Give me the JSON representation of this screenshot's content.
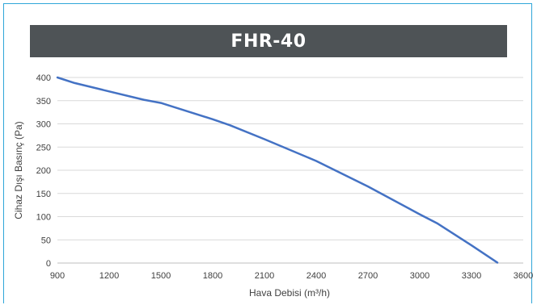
{
  "title": "FHR-40",
  "colors": {
    "frame": "#2fa6d9",
    "title_bg": "#4e5356",
    "line": "#4472c4",
    "grid": "#d9d9d9"
  },
  "chart_data": {
    "type": "line",
    "title": "FHR-40",
    "xlabel": "Hava Debisi (m³/h)",
    "ylabel": "Cihaz Dışı Basınç (Pa)",
    "xlim": [
      900,
      3600
    ],
    "ylim": [
      0,
      400
    ],
    "x_ticks": [
      900,
      1200,
      1500,
      1800,
      2100,
      2400,
      2700,
      3000,
      3300,
      3600
    ],
    "y_ticks": [
      0,
      50,
      100,
      150,
      200,
      250,
      300,
      350,
      400
    ],
    "grid": {
      "horizontal": true,
      "vertical": false
    },
    "series": [
      {
        "x": [
          900,
          1000,
          1200,
          1400,
          1500,
          1800,
          1900,
          2100,
          2400,
          2700,
          3000,
          3100,
          3300,
          3450
        ],
        "values": [
          400,
          388,
          370,
          352,
          345,
          310,
          297,
          267,
          220,
          165,
          105,
          86,
          38,
          1
        ]
      }
    ]
  }
}
